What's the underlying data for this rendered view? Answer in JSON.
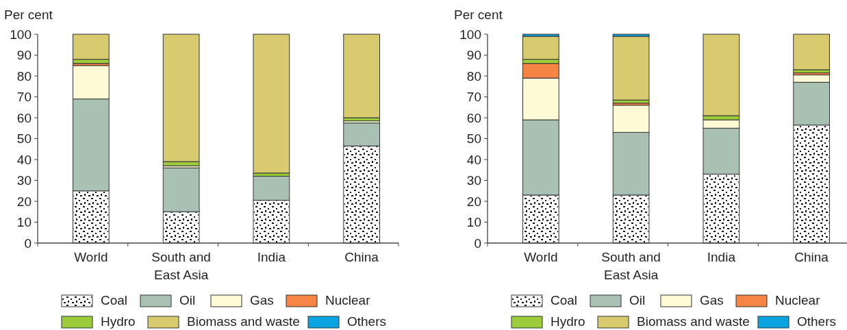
{
  "chart_data": [
    {
      "type": "bar",
      "stacked": true,
      "ylabel": "Per cent",
      "categories": [
        "World",
        "South and East Asia",
        "India",
        "China"
      ],
      "ylim": [
        0,
        100
      ],
      "yticks": [
        0,
        10,
        20,
        30,
        40,
        50,
        60,
        70,
        80,
        90,
        100
      ],
      "grid": false,
      "legend": "bottom",
      "series": [
        {
          "name": "Coal",
          "color": "#ffffff",
          "values": [
            25,
            15,
            20.5,
            46.5
          ]
        },
        {
          "name": "Oil",
          "color": "#a9c1b3",
          "values": [
            44,
            21,
            11.5,
            11
          ]
        },
        {
          "name": "Gas",
          "color": "#fffad6",
          "values": [
            16,
            1,
            0,
            1
          ]
        },
        {
          "name": "Nuclear",
          "color": "#f58445",
          "values": [
            1,
            0,
            0,
            0
          ]
        },
        {
          "name": "Hydro",
          "color": "#9ccc3c",
          "values": [
            2,
            2,
            1.5,
            1.5
          ]
        },
        {
          "name": "Biomass and waste",
          "color": "#d8ca6e",
          "values": [
            12,
            61,
            66.5,
            40
          ]
        },
        {
          "name": "Others",
          "color": "#0aa5e0",
          "values": [
            0,
            0,
            0,
            0
          ]
        }
      ]
    },
    {
      "type": "bar",
      "stacked": true,
      "ylabel": "Per cent",
      "categories": [
        "World",
        "South and East Asia",
        "India",
        "China"
      ],
      "ylim": [
        0,
        100
      ],
      "yticks": [
        0,
        10,
        20,
        30,
        40,
        50,
        60,
        70,
        80,
        90,
        100
      ],
      "grid": false,
      "legend": "bottom",
      "series": [
        {
          "name": "Coal",
          "color": "#ffffff",
          "values": [
            23,
            23,
            33,
            56.5
          ]
        },
        {
          "name": "Oil",
          "color": "#a9c1b3",
          "values": [
            36,
            30,
            22,
            20.5
          ]
        },
        {
          "name": "Gas",
          "color": "#fffad6",
          "values": [
            20,
            13,
            4,
            3.5
          ]
        },
        {
          "name": "Nuclear",
          "color": "#f58445",
          "values": [
            7,
            1,
            0,
            1
          ]
        },
        {
          "name": "Hydro",
          "color": "#9ccc3c",
          "values": [
            2,
            1.5,
            2,
            1.5
          ]
        },
        {
          "name": "Biomass and waste",
          "color": "#d8ca6e",
          "values": [
            11,
            30.5,
            39,
            17
          ]
        },
        {
          "name": "Others",
          "color": "#0aa5e0",
          "values": [
            1,
            1,
            0,
            0
          ]
        }
      ]
    }
  ]
}
